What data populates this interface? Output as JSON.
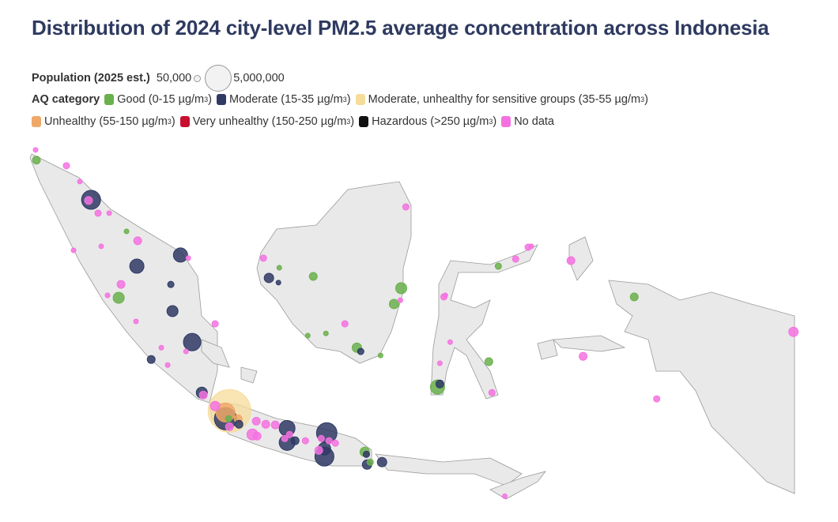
{
  "title": "Distribution of 2024 city-level PM2.5 average concentration across Indonesia",
  "legend": {
    "population_label": "Population (2025 est.)",
    "population_min": "50,000",
    "population_max": "5,000,000",
    "aq_label": "AQ category",
    "categories": [
      {
        "key": "g",
        "label": "Good (0-15 µg/m",
        "sup": "3",
        ")": ")",
        "color": "#6ab04c"
      },
      {
        "key": "m",
        "label": "Moderate (15-35 µg/m",
        "sup": "3",
        "color": "#2f3a64"
      },
      {
        "key": "s",
        "label": "Moderate, unhealthy for sensitive groups (35-55 µg/m",
        "sup": "3",
        "color": "#f5dc9a"
      },
      {
        "key": "u",
        "label": "Unhealthy (55-150 µg/m",
        "sup": "3",
        "color": "#f0a868"
      },
      {
        "key": "v",
        "label": "Very unhealthy (150-250 µg/m",
        "sup": "3",
        "color": "#c8102e"
      },
      {
        "key": "h",
        "label": "Hazardous (>250 µg/m",
        "sup": "3",
        "color": "#111111"
      },
      {
        "key": "n",
        "label": "No data",
        "sup": "",
        "color": "#f472e0"
      }
    ]
  },
  "map_data": {
    "region": "Indonesia",
    "projection_extent": {
      "lon": [
        95,
        141
      ],
      "lat": [
        -11,
        6
      ]
    },
    "cities": [
      [
        95.3,
        5.68,
        150000,
        "n"
      ],
      [
        95.35,
        5.22,
        430000,
        "g"
      ],
      [
        97.15,
        4.97,
        280000,
        "n"
      ],
      [
        97.96,
        4.26,
        150000,
        "n"
      ],
      [
        98.63,
        3.44,
        2500000,
        "m"
      ],
      [
        98.48,
        3.41,
        430000,
        "n"
      ],
      [
        99.05,
        2.84,
        280000,
        "n"
      ],
      [
        99.72,
        2.84,
        150000,
        "n"
      ],
      [
        100.76,
        2.02,
        150000,
        "g"
      ],
      [
        101.43,
        1.6,
        430000,
        "n"
      ],
      [
        99.24,
        1.35,
        150000,
        "n"
      ],
      [
        97.58,
        1.17,
        150000,
        "n"
      ],
      [
        104.0,
        0.96,
        1400000,
        "m"
      ],
      [
        104.47,
        0.82,
        150000,
        "n"
      ],
      [
        101.38,
        0.46,
        1400000,
        "m"
      ],
      [
        100.43,
        -0.36,
        430000,
        "n"
      ],
      [
        100.29,
        -0.96,
        850000,
        "g"
      ],
      [
        99.62,
        -0.85,
        150000,
        "n"
      ],
      [
        103.42,
        -0.36,
        280000,
        "m"
      ],
      [
        103.52,
        -1.56,
        850000,
        "m"
      ],
      [
        106.08,
        -2.13,
        280000,
        "n"
      ],
      [
        101.33,
        -2.02,
        150000,
        "n"
      ],
      [
        104.7,
        -2.95,
        2100000,
        "m"
      ],
      [
        102.85,
        -3.2,
        150000,
        "n"
      ],
      [
        102.24,
        -3.73,
        430000,
        "m"
      ],
      [
        103.23,
        -3.98,
        150000,
        "n"
      ],
      [
        104.33,
        -3.37,
        150000,
        "n"
      ],
      [
        105.28,
        -5.22,
        850000,
        "m"
      ],
      [
        105.37,
        -5.33,
        430000,
        "n"
      ],
      [
        106.94,
        -6.04,
        12600000,
        "s"
      ],
      [
        106.7,
        -6.11,
        2500000,
        "u"
      ],
      [
        106.7,
        -6.39,
        3400000,
        "m"
      ],
      [
        106.89,
        -6.39,
        280000,
        "g"
      ],
      [
        107.46,
        -6.39,
        430000,
        "u"
      ],
      [
        106.08,
        -5.82,
        620000,
        "n"
      ],
      [
        106.94,
        -6.75,
        430000,
        "n"
      ],
      [
        107.51,
        -6.64,
        430000,
        "m"
      ],
      [
        108.32,
        -7.1,
        850000,
        "n"
      ],
      [
        108.6,
        -7.17,
        430000,
        "n"
      ],
      [
        108.55,
        -6.5,
        430000,
        "n"
      ],
      [
        109.12,
        -6.64,
        430000,
        "n"
      ],
      [
        109.69,
        -6.67,
        430000,
        "n"
      ],
      [
        110.4,
        -6.82,
        1730000,
        "m"
      ],
      [
        110.4,
        -7.46,
        1730000,
        "m"
      ],
      [
        110.88,
        -7.38,
        430000,
        "m"
      ],
      [
        110.55,
        -7.1,
        280000,
        "n"
      ],
      [
        110.26,
        -7.28,
        280000,
        "n"
      ],
      [
        112.78,
        -7.03,
        2900000,
        "m"
      ],
      [
        112.64,
        -8.09,
        2500000,
        "m"
      ],
      [
        112.64,
        -7.74,
        1100000,
        "m"
      ],
      [
        112.45,
        -7.28,
        280000,
        "n"
      ],
      [
        111.5,
        -7.38,
        280000,
        "n"
      ],
      [
        112.3,
        -7.81,
        430000,
        "n"
      ],
      [
        112.92,
        -7.38,
        280000,
        "n"
      ],
      [
        113.3,
        -7.49,
        280000,
        "n"
      ],
      [
        115.06,
        -7.88,
        620000,
        "g"
      ],
      [
        115.16,
        -7.99,
        280000,
        "m"
      ],
      [
        115.2,
        -8.45,
        620000,
        "m"
      ],
      [
        115.39,
        -8.34,
        280000,
        "g"
      ],
      [
        116.1,
        -8.34,
        620000,
        "m"
      ],
      [
        108.98,
        0.82,
        280000,
        "n"
      ],
      [
        109.93,
        0.39,
        150000,
        "g"
      ],
      [
        109.31,
        -0.07,
        620000,
        "m"
      ],
      [
        109.88,
        -0.28,
        150000,
        "m"
      ],
      [
        111.97,
        0.0,
        430000,
        "g"
      ],
      [
        117.25,
        -0.53,
        850000,
        "g"
      ],
      [
        116.82,
        -1.24,
        620000,
        "g"
      ],
      [
        117.2,
        -1.07,
        150000,
        "n"
      ],
      [
        113.87,
        -2.13,
        280000,
        "n"
      ],
      [
        111.64,
        -2.66,
        150000,
        "g"
      ],
      [
        112.73,
        -2.56,
        150000,
        "g"
      ],
      [
        114.59,
        -3.2,
        620000,
        "g"
      ],
      [
        114.82,
        -3.37,
        280000,
        "m"
      ],
      [
        116.01,
        -3.55,
        150000,
        "g"
      ],
      [
        117.53,
        3.12,
        280000,
        "n"
      ],
      [
        119.81,
        -0.92,
        280000,
        "n"
      ],
      [
        119.9,
        -0.85,
        150000,
        "n"
      ],
      [
        119.43,
        -4.97,
        1400000,
        "g"
      ],
      [
        119.57,
        -4.83,
        430000,
        "m"
      ],
      [
        120.19,
        -2.95,
        150000,
        "n"
      ],
      [
        119.57,
        -3.9,
        150000,
        "n"
      ],
      [
        122.51,
        -3.83,
        430000,
        "g"
      ],
      [
        122.7,
        -5.22,
        280000,
        "n"
      ],
      [
        123.08,
        0.46,
        280000,
        "g"
      ],
      [
        124.12,
        0.78,
        280000,
        "n"
      ],
      [
        124.87,
        1.31,
        280000,
        "n"
      ],
      [
        125.06,
        1.35,
        150000,
        "n"
      ],
      [
        127.44,
        0.71,
        430000,
        "n"
      ],
      [
        131.24,
        -0.92,
        430000,
        "g"
      ],
      [
        128.17,
        -3.59,
        430000,
        "n"
      ],
      [
        132.59,
        -5.5,
        280000,
        "n"
      ],
      [
        140.8,
        -2.49,
        620000,
        "n"
      ],
      [
        123.47,
        -9.87,
        150000,
        "n"
      ]
    ]
  }
}
